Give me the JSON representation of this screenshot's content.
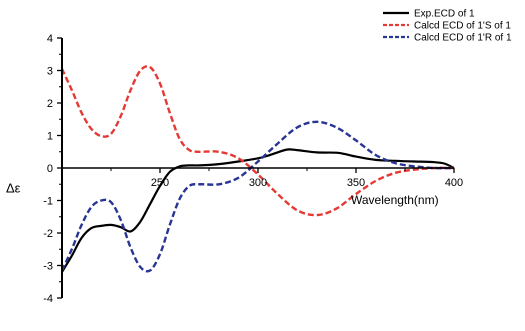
{
  "chart_data": {
    "type": "line",
    "xlabel": "Wavelength(nm)",
    "ylabel": "Δε",
    "xlim": [
      200,
      400
    ],
    "ylim": [
      -4,
      4
    ],
    "x_ticks": [
      "250",
      "300",
      "350",
      "400"
    ],
    "y_ticks": [
      "-4",
      "-3",
      "-2",
      "-1",
      "0",
      "1",
      "2",
      "3",
      "4"
    ],
    "grid": false,
    "legend_position": "top-right",
    "series": [
      {
        "name": "Exp.ECD of 1",
        "color": "#000000",
        "dash": "solid",
        "x": [
          200,
          205,
          210,
          215,
          220,
          225,
          230,
          235,
          240,
          245,
          250,
          255,
          260,
          265,
          270,
          280,
          290,
          300,
          305,
          310,
          315,
          320,
          330,
          340,
          345,
          350,
          360,
          370,
          380,
          390,
          395,
          400
        ],
        "y": [
          -3.2,
          -2.7,
          -2.15,
          -1.85,
          -1.78,
          -1.75,
          -1.82,
          -1.95,
          -1.65,
          -1.1,
          -0.55,
          -0.12,
          0.05,
          0.08,
          0.08,
          0.12,
          0.2,
          0.3,
          0.38,
          0.48,
          0.57,
          0.55,
          0.48,
          0.47,
          0.42,
          0.35,
          0.25,
          0.22,
          0.2,
          0.18,
          0.14,
          0.0
        ]
      },
      {
        "name": "Calcd ECD of 1'S of 1",
        "color": "#e53935",
        "dash": "dashed",
        "x": [
          200,
          205,
          210,
          215,
          220,
          225,
          230,
          235,
          240,
          245,
          250,
          255,
          260,
          265,
          270,
          280,
          290,
          300,
          310,
          320,
          330,
          340,
          350,
          360,
          370,
          380,
          390,
          400
        ],
        "y": [
          3.05,
          2.4,
          1.7,
          1.2,
          0.98,
          1.05,
          1.6,
          2.4,
          3.0,
          3.1,
          2.6,
          1.7,
          0.9,
          0.55,
          0.5,
          0.5,
          0.3,
          -0.2,
          -0.8,
          -1.3,
          -1.45,
          -1.25,
          -0.8,
          -0.4,
          -0.15,
          -0.05,
          0.0,
          0.0
        ]
      },
      {
        "name": "Calcd ECD of 1'R of 1",
        "color": "#283593",
        "dash": "dashed",
        "x": [
          200,
          205,
          210,
          215,
          220,
          225,
          230,
          235,
          240,
          245,
          250,
          255,
          260,
          265,
          270,
          280,
          290,
          300,
          310,
          320,
          330,
          340,
          350,
          360,
          370,
          380,
          390,
          400
        ],
        "y": [
          -3.15,
          -2.5,
          -1.75,
          -1.2,
          -1.0,
          -1.05,
          -1.6,
          -2.45,
          -3.05,
          -3.15,
          -2.65,
          -1.75,
          -0.95,
          -0.55,
          -0.5,
          -0.5,
          -0.3,
          0.2,
          0.75,
          1.25,
          1.42,
          1.25,
          0.85,
          0.4,
          0.15,
          0.05,
          0.0,
          0.0
        ]
      }
    ]
  }
}
